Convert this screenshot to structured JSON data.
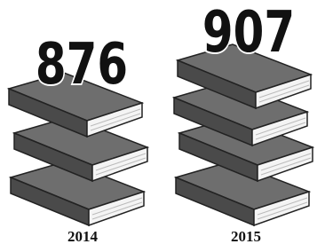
{
  "items": [
    {
      "value": "876",
      "year": "2014"
    },
    {
      "value": "907",
      "year": "2015"
    }
  ]
}
